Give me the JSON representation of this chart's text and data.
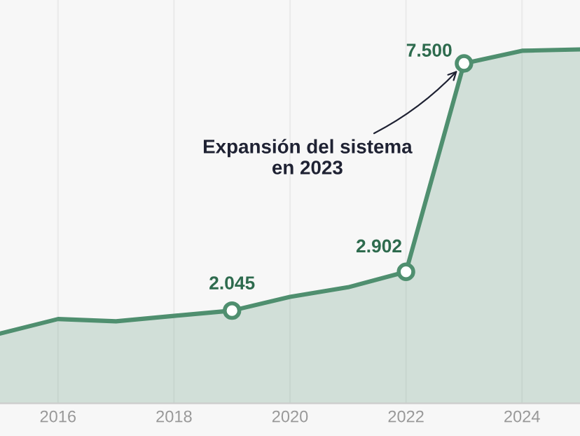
{
  "chart_data": {
    "type": "area",
    "x": [
      2015,
      2016,
      2017,
      2018,
      2019,
      2020,
      2021,
      2022,
      2023,
      2024,
      2025
    ],
    "series": [
      {
        "color": "#4f8f6f",
        "values": [
          1540,
          1860,
          1810,
          1930,
          2045,
          2350,
          2560,
          2902,
          7500,
          7780,
          7810
        ],
        "value_labels": [
          null,
          null,
          null,
          null,
          "2.045",
          null,
          null,
          "2.902",
          "7.500",
          null,
          null
        ]
      }
    ],
    "xlim": [
      2015,
      2025
    ],
    "xticks": [
      2016,
      2018,
      2020,
      2022,
      2024
    ],
    "ylim": [
      0,
      8900
    ],
    "tick_labels": "x",
    "grid": "x",
    "annotations": [
      {
        "text": "Expansión del sistema\nen 2023",
        "x": 2023,
        "y": 7500
      }
    ]
  }
}
